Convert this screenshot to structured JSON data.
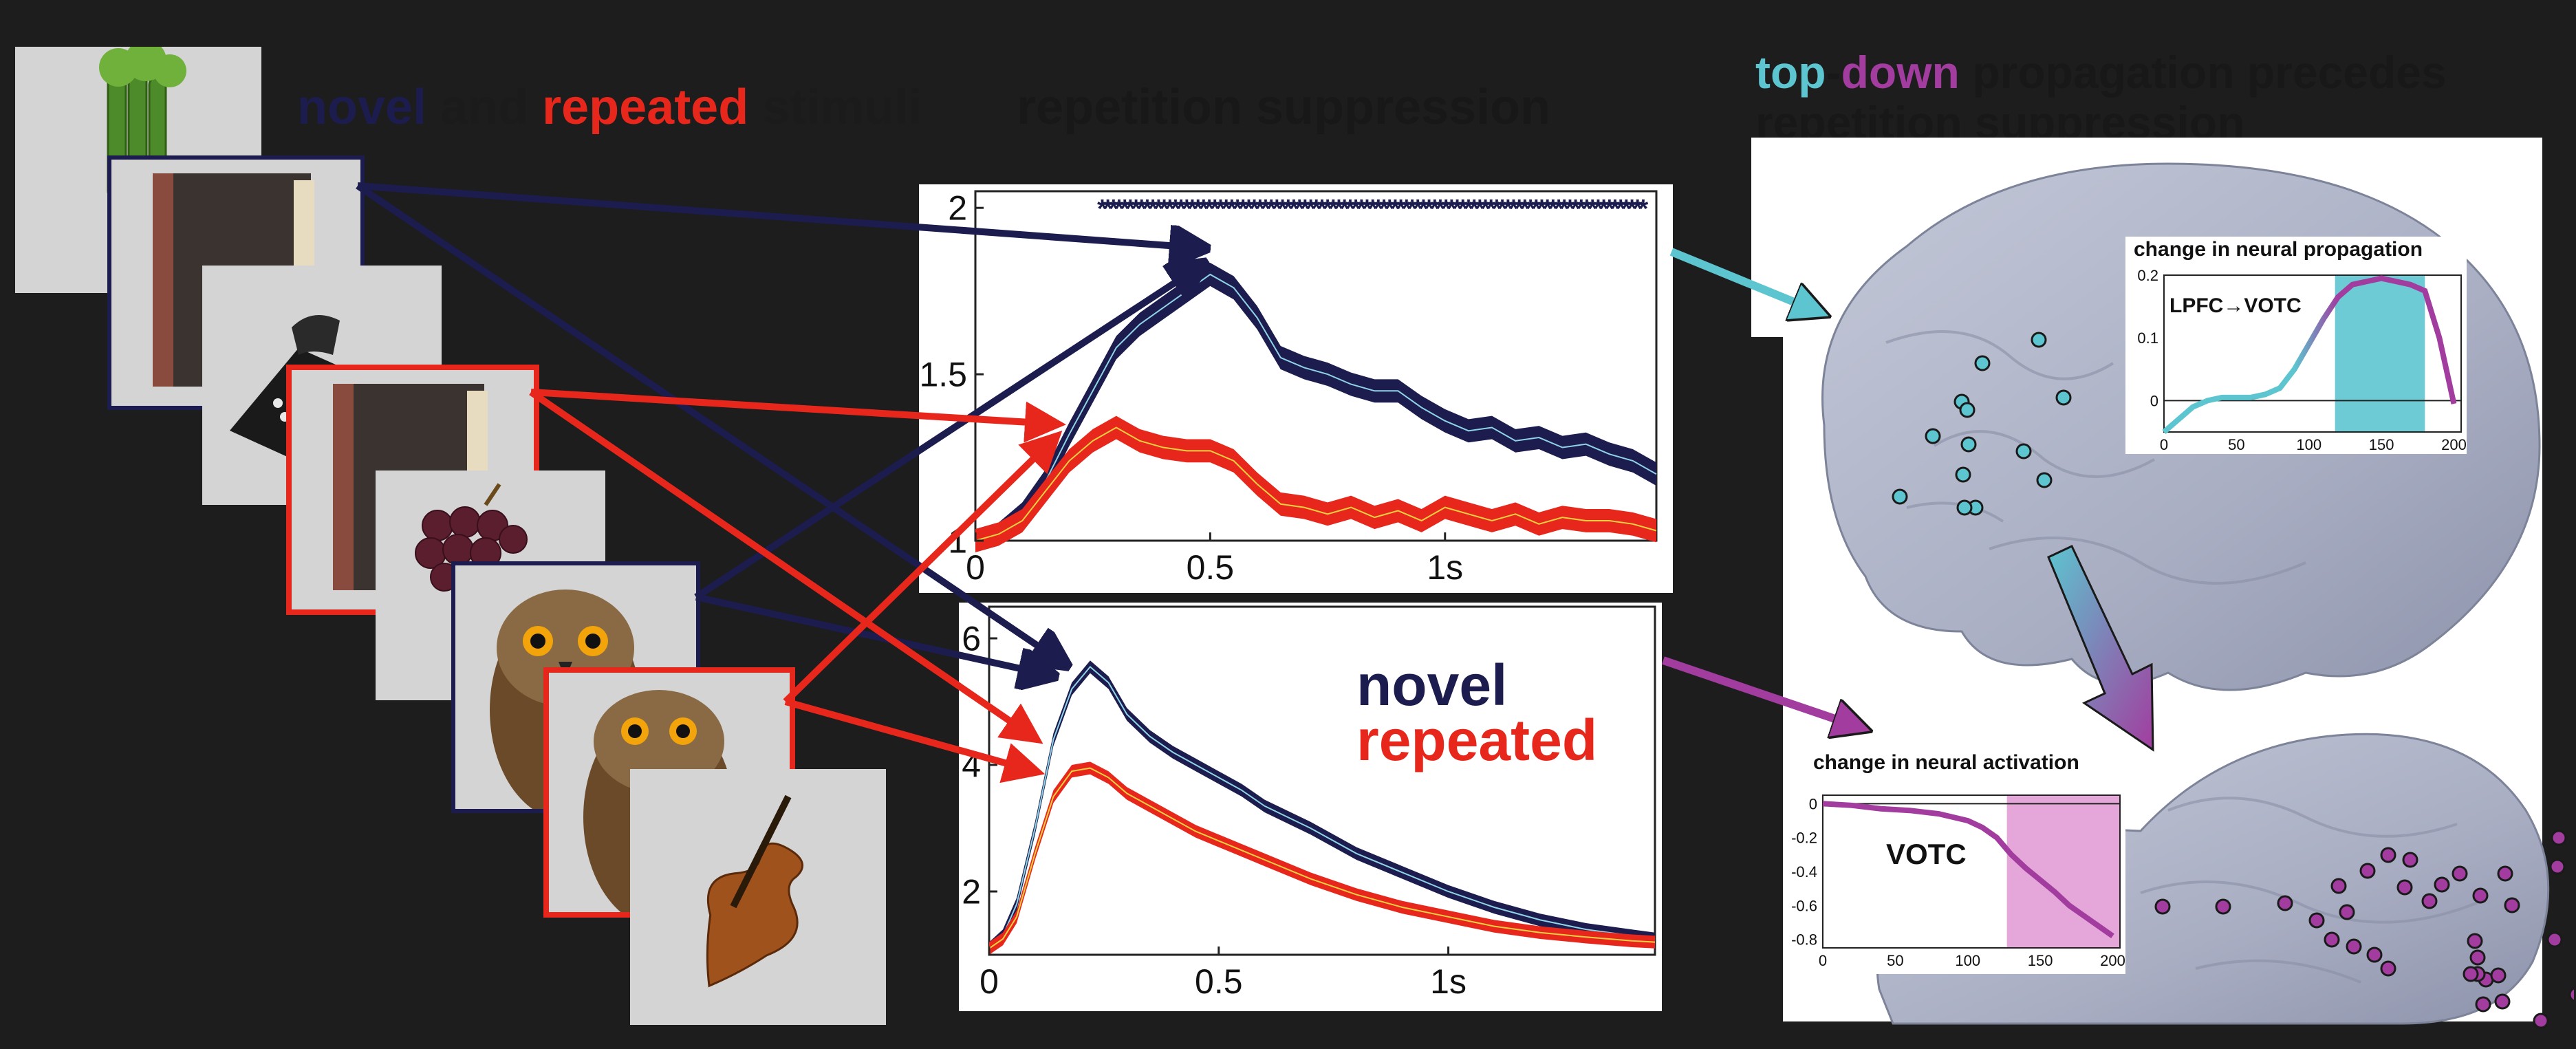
{
  "header_stimuli": {
    "novel": "novel",
    "and": " and ",
    "repeated": "repeated",
    "stimuli": " stimuli"
  },
  "header_suppression": "repetition suppression",
  "header_topdown": {
    "top": "top",
    "dash": "-",
    "down": "down",
    "rest": " propagation precedes",
    "line2": "repetition suppression"
  },
  "legend": {
    "novel": "novel",
    "repeated": "repeated"
  },
  "colors": {
    "novel": "#1c1c4e",
    "repeated": "#e8271c",
    "cyan": "#5cc5cf",
    "magenta": "#a23d9f",
    "background": "#1d1d1d"
  },
  "stimuli": [
    {
      "name": "celery",
      "condition": "novel"
    },
    {
      "name": "book",
      "condition": "novel"
    },
    {
      "name": "telephone",
      "condition": "novel"
    },
    {
      "name": "book",
      "condition": "repeated"
    },
    {
      "name": "grapes",
      "condition": "novel"
    },
    {
      "name": "owl",
      "condition": "novel"
    },
    {
      "name": "owl",
      "condition": "repeated"
    },
    {
      "name": "violin",
      "condition": "novel"
    }
  ],
  "chart_data": [
    {
      "type": "line",
      "title": "",
      "xlabel": "",
      "ylabel": "",
      "xlim": [
        0,
        1.45
      ],
      "ylim": [
        1,
        2.05
      ],
      "x_ticks": [
        "0",
        "0.5",
        "1s"
      ],
      "y_ticks": [
        "1",
        "1.5",
        "2"
      ],
      "significance_markers": {
        "from": 0.27,
        "to": 1.43,
        "y": 2.0,
        "symbol": "*"
      },
      "x": [
        0,
        0.05,
        0.1,
        0.15,
        0.2,
        0.25,
        0.3,
        0.35,
        0.4,
        0.45,
        0.5,
        0.55,
        0.6,
        0.65,
        0.7,
        0.75,
        0.8,
        0.85,
        0.9,
        0.95,
        1.0,
        1.05,
        1.1,
        1.15,
        1.2,
        1.25,
        1.3,
        1.35,
        1.4,
        1.45
      ],
      "series": [
        {
          "name": "novel",
          "values": [
            1.0,
            1.02,
            1.08,
            1.18,
            1.32,
            1.45,
            1.58,
            1.65,
            1.7,
            1.75,
            1.8,
            1.76,
            1.67,
            1.55,
            1.52,
            1.5,
            1.47,
            1.45,
            1.45,
            1.4,
            1.36,
            1.33,
            1.34,
            1.3,
            1.31,
            1.28,
            1.29,
            1.26,
            1.24,
            1.2
          ],
          "band": 0.035
        },
        {
          "name": "repeated",
          "values": [
            1.0,
            1.02,
            1.06,
            1.15,
            1.24,
            1.3,
            1.34,
            1.3,
            1.28,
            1.27,
            1.27,
            1.24,
            1.17,
            1.11,
            1.1,
            1.08,
            1.1,
            1.07,
            1.09,
            1.06,
            1.1,
            1.08,
            1.06,
            1.08,
            1.05,
            1.07,
            1.06,
            1.06,
            1.05,
            1.03
          ],
          "band": 0.035
        }
      ]
    },
    {
      "type": "line",
      "title": "",
      "xlabel": "",
      "ylabel": "",
      "xlim": [
        0,
        1.45
      ],
      "ylim": [
        1,
        6.5
      ],
      "x_ticks": [
        "0",
        "0.5",
        "1s"
      ],
      "y_ticks": [
        "2",
        "4",
        "6"
      ],
      "x": [
        0,
        0.03,
        0.06,
        0.1,
        0.14,
        0.18,
        0.22,
        0.26,
        0.3,
        0.35,
        0.4,
        0.45,
        0.5,
        0.55,
        0.6,
        0.7,
        0.8,
        0.9,
        1.0,
        1.1,
        1.2,
        1.3,
        1.4,
        1.45
      ],
      "series": [
        {
          "name": "novel",
          "values": [
            1.1,
            1.3,
            1.8,
            3.0,
            4.4,
            5.2,
            5.55,
            5.3,
            4.8,
            4.45,
            4.2,
            4.0,
            3.8,
            3.6,
            3.35,
            3.0,
            2.6,
            2.3,
            2.0,
            1.75,
            1.55,
            1.4,
            1.3,
            1.25
          ],
          "band": 0.1
        },
        {
          "name": "repeated",
          "values": [
            1.1,
            1.25,
            1.6,
            2.6,
            3.5,
            3.9,
            3.95,
            3.8,
            3.55,
            3.35,
            3.15,
            2.95,
            2.8,
            2.65,
            2.5,
            2.2,
            1.95,
            1.75,
            1.6,
            1.45,
            1.35,
            1.28,
            1.22,
            1.2
          ],
          "band": 0.1
        }
      ]
    },
    {
      "type": "line",
      "title": "change in neural propagation",
      "label": "LPFC→VOTC",
      "xlabel": "",
      "ylabel": "",
      "xlim": [
        0,
        205
      ],
      "ylim": [
        -0.05,
        0.2
      ],
      "x_ticks": [
        "0",
        "50",
        "100",
        "150",
        "200"
      ],
      "y_ticks": [
        "0",
        "0.1",
        "0.2"
      ],
      "highlight": [
        118,
        180
      ],
      "x": [
        0,
        10,
        20,
        30,
        40,
        50,
        60,
        70,
        80,
        90,
        100,
        110,
        120,
        130,
        140,
        150,
        160,
        170,
        180,
        190,
        200
      ],
      "values": [
        -0.05,
        -0.03,
        -0.01,
        0.0,
        0.005,
        0.005,
        0.005,
        0.01,
        0.02,
        0.05,
        0.09,
        0.13,
        0.165,
        0.185,
        0.19,
        0.195,
        0.19,
        0.185,
        0.175,
        0.1,
        -0.005
      ]
    },
    {
      "type": "line",
      "title": "change in neural activation",
      "label": "VOTC",
      "xlabel": "",
      "ylabel": "",
      "xlim": [
        0,
        205
      ],
      "ylim": [
        -0.85,
        0.05
      ],
      "x_ticks": [
        "0",
        "50",
        "100",
        "150",
        "200"
      ],
      "y_ticks": [
        "0",
        "-0.2",
        "-0.4",
        "-0.6",
        "-0.8"
      ],
      "highlight": [
        127,
        205
      ],
      "x": [
        0,
        20,
        40,
        60,
        80,
        100,
        110,
        120,
        130,
        140,
        150,
        160,
        170,
        180,
        190,
        200
      ],
      "values": [
        0.0,
        -0.01,
        -0.03,
        -0.04,
        -0.06,
        -0.1,
        -0.14,
        -0.2,
        -0.3,
        -0.38,
        -0.45,
        -0.52,
        -0.6,
        -0.66,
        -0.72,
        -0.78
      ]
    }
  ],
  "electrodes": {
    "lateral_cyan_count": 22,
    "ventral_magenta_count": 34
  }
}
